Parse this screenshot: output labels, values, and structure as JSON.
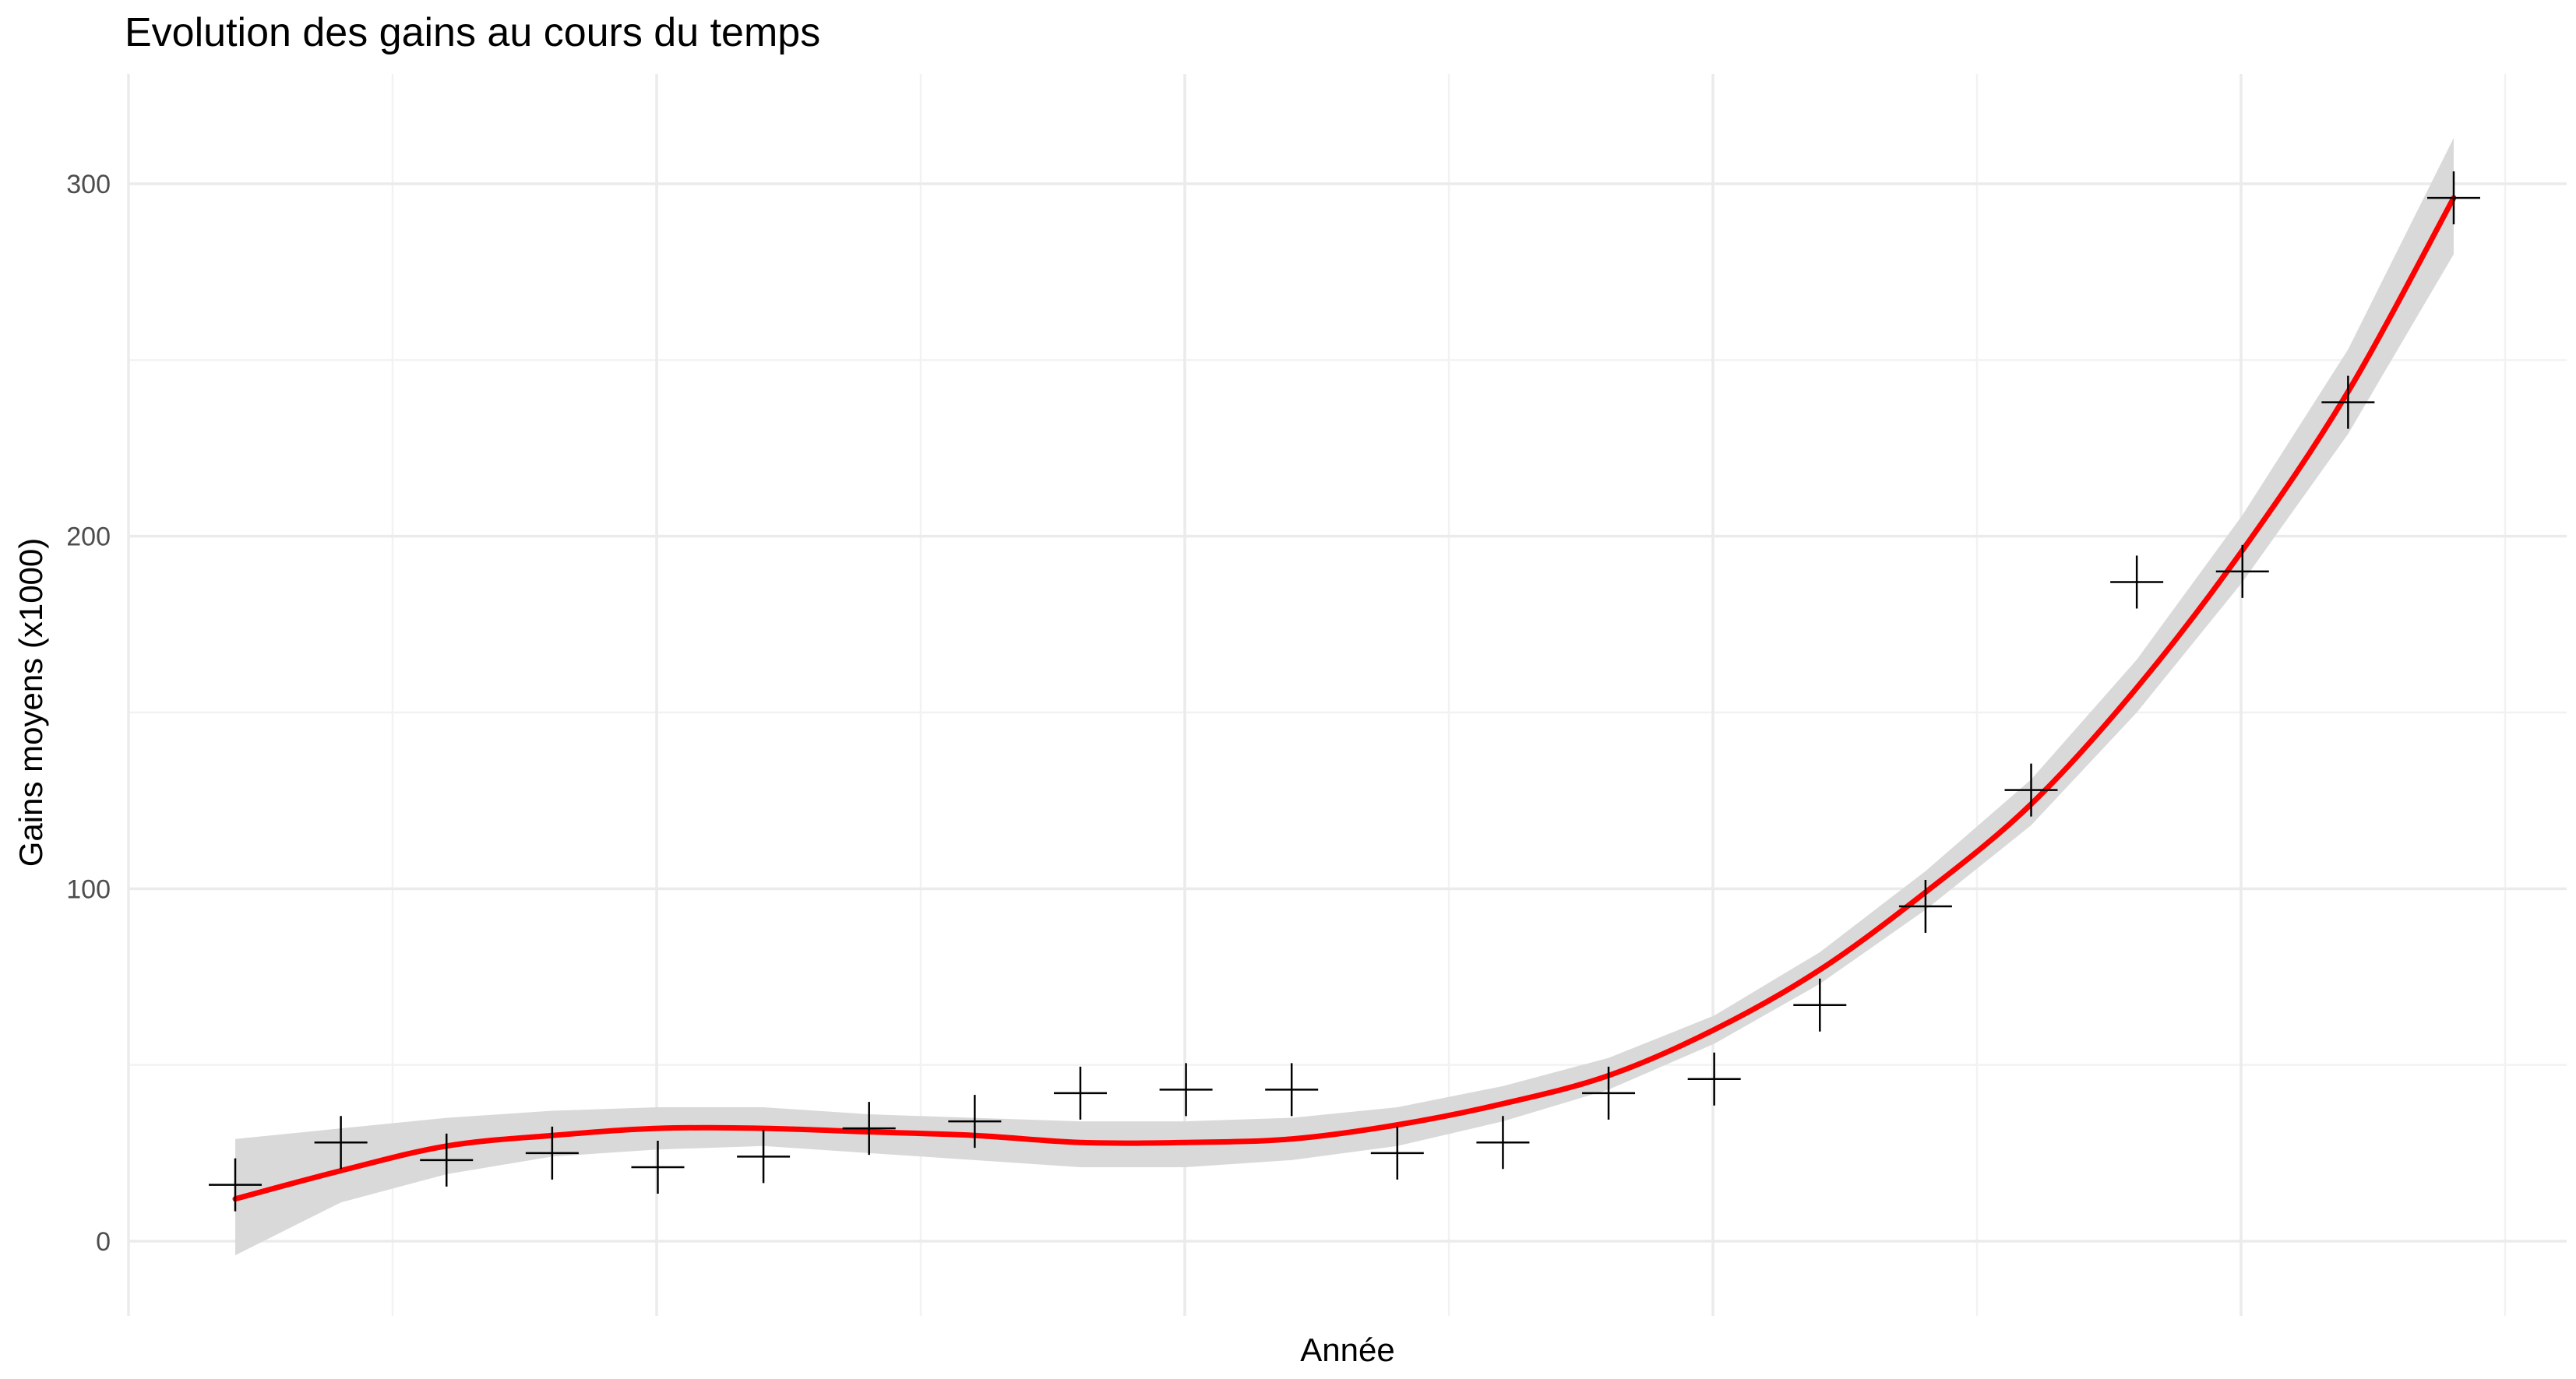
{
  "chart_data": {
    "type": "scatter",
    "title": "Evolution des gains au cours du temps",
    "xlabel": "Année",
    "ylabel": "Gains moyens (x1000)",
    "ylim": [
      -16,
      326
    ],
    "y_ticks": [
      "0",
      "100",
      "200",
      "300"
    ],
    "y_tick_values": [
      0,
      100,
      200,
      300
    ],
    "x_ticks_labels_shown": false,
    "grid": true,
    "point_marker": "plus",
    "series": [
      {
        "kind": "points",
        "values": [
          16,
          28,
          23,
          25,
          21,
          24,
          32,
          34,
          42,
          43,
          43,
          25,
          28,
          42,
          46,
          67,
          95,
          128,
          187,
          190,
          238,
          296
        ]
      },
      {
        "kind": "smooth-fit",
        "values": [
          12,
          20,
          27,
          30,
          32,
          32,
          31,
          30,
          28,
          28,
          29,
          33,
          39,
          47,
          60,
          77,
          99,
          124,
          157,
          196,
          241,
          296
        ],
        "ci_lower": [
          -4,
          11,
          19,
          24,
          26,
          27,
          25,
          23,
          21,
          21,
          23,
          27,
          34,
          43,
          56,
          73,
          94,
          118,
          150,
          187,
          229,
          280
        ],
        "ci_upper": [
          29,
          32,
          35,
          37,
          38,
          38,
          36,
          35,
          34,
          34,
          35,
          38,
          44,
          52,
          64,
          82,
          105,
          131,
          165,
          206,
          253,
          313
        ],
        "color": "#ff0000",
        "band_color": "#d9d9d9"
      }
    ],
    "colors": {
      "points": "#000000",
      "grid_major": "#ebebeb",
      "grid_minor": "#f2f2f2"
    }
  }
}
